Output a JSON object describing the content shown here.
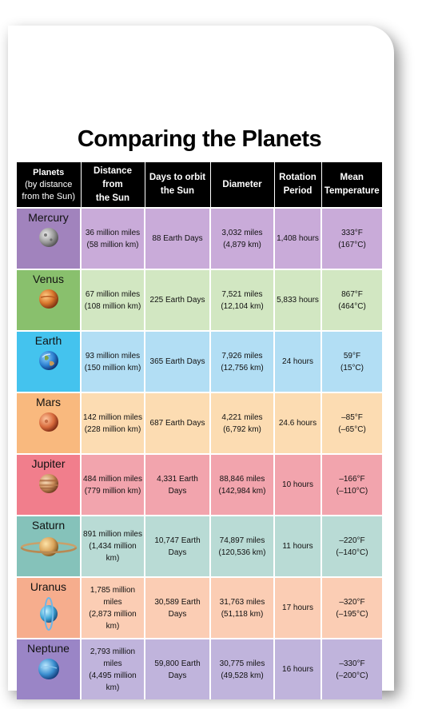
{
  "title": "Comparing the Planets",
  "headers": {
    "planet": [
      "Planets",
      "(by distance",
      "from the Sun)"
    ],
    "distance": [
      "Distance from",
      "the Sun"
    ],
    "days": [
      "Days to orbit",
      "the Sun"
    ],
    "diameter": "Diameter",
    "rotation": [
      "Rotation",
      "Period"
    ],
    "temp": [
      "Mean",
      "Temperature"
    ]
  },
  "rows": [
    {
      "name": "Mercury",
      "icon": "mercury-icon",
      "color": "#c9abd9",
      "planet_color": "#a183bd",
      "dist": [
        "36 million miles",
        "(58 million km)"
      ],
      "days": "88 Earth Days",
      "diam": [
        "3,032 miles",
        "(4,879 km)"
      ],
      "rot": "1,408 hours",
      "temp": [
        "333°F",
        "(167°C)"
      ]
    },
    {
      "name": "Venus",
      "icon": "venus-icon",
      "color": "#d2e7c2",
      "planet_color": "#89c06d",
      "dist": [
        "67 million miles",
        "(108 million km)"
      ],
      "days": "225 Earth Days",
      "diam": [
        "7,521 miles",
        "(12,104 km)"
      ],
      "rot": "5,833 hours",
      "temp": [
        "867°F",
        "(464°C)"
      ]
    },
    {
      "name": "Earth",
      "icon": "earth-icon",
      "color": "#b2def4",
      "planet_color": "#44c3ee",
      "dist": [
        "93 million miles",
        "(150 million km)"
      ],
      "days": "365 Earth Days",
      "diam": [
        "7,926 miles",
        "(12,756 km)"
      ],
      "rot": "24 hours",
      "temp": [
        "59°F",
        "(15°C)"
      ]
    },
    {
      "name": "Mars",
      "icon": "mars-icon",
      "color": "#fcdcb2",
      "planet_color": "#f9b97e",
      "dist": [
        "142 million miles",
        "(228 million km)"
      ],
      "days": "687 Earth Days",
      "diam": [
        "4,221 miles",
        "(6,792 km)"
      ],
      "rot": "24.6 hours",
      "temp": [
        "–85°F",
        "(–65°C)"
      ]
    },
    {
      "name": "Jupiter",
      "icon": "jupiter-icon",
      "color": "#f2a4ad",
      "planet_color": "#f17e8c",
      "dist": [
        "484 million miles",
        "(779 million km)"
      ],
      "days": "4,331 Earth Days",
      "diam": [
        "88,846 miles",
        "(142,984 km)"
      ],
      "rot": "10 hours",
      "temp": [
        "–166°F",
        "(–110°C)"
      ]
    },
    {
      "name": "Saturn",
      "icon": "saturn-icon",
      "color": "#b9dbd5",
      "planet_color": "#85c2ba",
      "dist": [
        "891 million miles",
        "(1,434 million km)"
      ],
      "days": "10,747 Earth Days",
      "diam": [
        "74,897 miles",
        "(120,536 km)"
      ],
      "rot": "11 hours",
      "temp": [
        "–220°F",
        "(–140°C)"
      ]
    },
    {
      "name": "Uranus",
      "icon": "uranus-icon",
      "color": "#fbcdb4",
      "planet_color": "#f6ad8d",
      "dist": [
        "1,785 million miles",
        "(2,873 million km)"
      ],
      "days": "30,589 Earth Days",
      "diam": [
        "31,763 miles",
        "(51,118 km)"
      ],
      "rot": "17 hours",
      "temp": [
        "–320°F",
        "(–195°C)"
      ]
    },
    {
      "name": "Neptune",
      "icon": "neptune-icon",
      "color": "#c0b4dc",
      "planet_color": "#9a85c6",
      "dist": [
        "2,793 million miles",
        "(4,495 million km)"
      ],
      "days": "59,800 Earth Days",
      "diam": [
        "30,775 miles",
        "(49,528 km)"
      ],
      "rot": "16 hours",
      "temp": [
        "–330°F",
        "(–200°C)"
      ]
    }
  ]
}
